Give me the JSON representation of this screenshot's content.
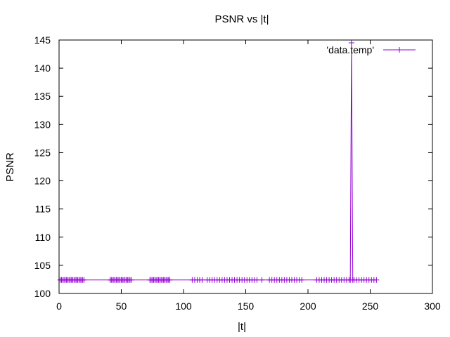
{
  "chart_data": {
    "type": "line",
    "title": "PSNR vs |t|",
    "xlabel": "|t|",
    "ylabel": "PSNR",
    "xlim": [
      0,
      300
    ],
    "ylim": [
      100,
      145
    ],
    "x_ticks": [
      0,
      50,
      100,
      150,
      200,
      250,
      300
    ],
    "y_ticks": [
      100,
      105,
      110,
      115,
      120,
      125,
      130,
      135,
      140,
      145
    ],
    "grid": false,
    "legend_position": "top-right",
    "series_color": "#9400d3",
    "series": [
      {
        "name": "'data.temp'",
        "marker": "plus",
        "x": [
          1,
          2,
          3,
          4,
          5,
          6,
          7,
          8,
          9,
          10,
          11,
          12,
          13,
          14,
          15,
          16,
          17,
          18,
          19,
          20,
          41,
          42,
          43,
          44,
          45,
          46,
          47,
          48,
          49,
          50,
          51,
          52,
          53,
          54,
          55,
          56,
          57,
          58,
          73,
          74,
          75,
          76,
          77,
          78,
          79,
          80,
          81,
          82,
          83,
          84,
          85,
          86,
          87,
          88,
          89,
          107,
          109,
          111,
          113,
          115,
          119,
          121,
          123,
          125,
          127,
          129,
          131,
          133,
          135,
          137,
          139,
          141,
          143,
          145,
          147,
          149,
          151,
          153,
          155,
          157,
          159,
          163,
          169,
          171,
          173,
          175,
          177,
          179,
          181,
          183,
          185,
          187,
          189,
          191,
          193,
          195,
          207,
          209,
          211,
          213,
          215,
          217,
          219,
          221,
          223,
          225,
          227,
          229,
          231,
          233,
          234,
          235,
          236,
          237,
          239,
          241,
          243,
          245,
          247,
          249,
          251,
          253,
          255
        ],
        "y": [
          102.4,
          102.4,
          102.4,
          102.4,
          102.4,
          102.4,
          102.4,
          102.4,
          102.4,
          102.4,
          102.4,
          102.4,
          102.4,
          102.4,
          102.4,
          102.4,
          102.4,
          102.4,
          102.4,
          102.4,
          102.4,
          102.4,
          102.4,
          102.4,
          102.4,
          102.4,
          102.4,
          102.4,
          102.4,
          102.4,
          102.4,
          102.4,
          102.4,
          102.4,
          102.4,
          102.4,
          102.4,
          102.4,
          102.4,
          102.4,
          102.4,
          102.4,
          102.4,
          102.4,
          102.4,
          102.4,
          102.4,
          102.4,
          102.4,
          102.4,
          102.4,
          102.4,
          102.4,
          102.4,
          102.4,
          102.4,
          102.4,
          102.4,
          102.4,
          102.4,
          102.4,
          102.4,
          102.4,
          102.4,
          102.4,
          102.4,
          102.4,
          102.4,
          102.4,
          102.4,
          102.4,
          102.4,
          102.4,
          102.4,
          102.4,
          102.4,
          102.4,
          102.4,
          102.4,
          102.4,
          102.4,
          102.4,
          102.4,
          102.4,
          102.4,
          102.4,
          102.4,
          102.4,
          102.4,
          102.4,
          102.4,
          102.4,
          102.4,
          102.4,
          102.4,
          102.4,
          102.4,
          102.4,
          102.4,
          102.4,
          102.4,
          102.4,
          102.4,
          102.4,
          102.4,
          102.4,
          102.4,
          102.4,
          102.4,
          102.4,
          102.4,
          144.5,
          102.4,
          102.4,
          102.4,
          102.4,
          102.4,
          102.4,
          102.4,
          102.4,
          102.4,
          102.4,
          102.4
        ]
      }
    ]
  }
}
